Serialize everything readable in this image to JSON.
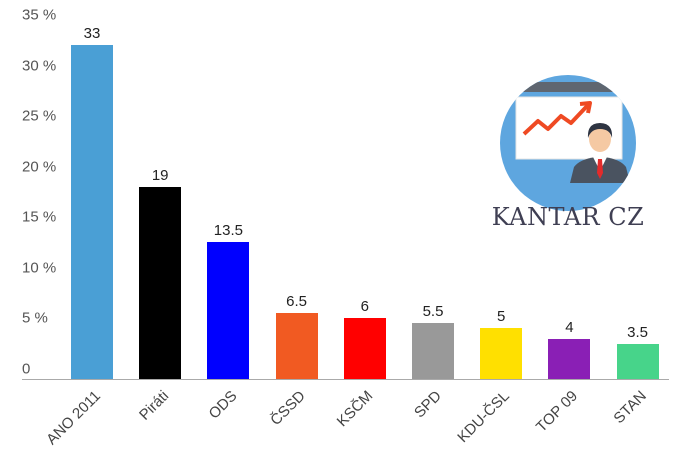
{
  "chart_data": {
    "type": "bar",
    "title": "",
    "xlabel": "",
    "ylabel": "",
    "ylim": [
      0,
      35
    ],
    "yticks": [
      "0",
      "5 %",
      "10 %",
      "15 %",
      "20 %",
      "25 %",
      "30 %",
      "35 %"
    ],
    "grid": false,
    "legend": null,
    "categories": [
      "ANO 2011",
      "Piráti",
      "ODS",
      "ČSSD",
      "KSČM",
      "SPD",
      "KDU-ČSL",
      "TOP 09",
      "STAN"
    ],
    "values": [
      33,
      19,
      13.5,
      6.5,
      6,
      5.5,
      5,
      4,
      3.5
    ],
    "value_labels": [
      "33",
      "19",
      "13.5",
      "6.5",
      "6",
      "5.5",
      "5",
      "4",
      "3.5"
    ],
    "colors": [
      "#4a9fd5",
      "#000000",
      "#0000ff",
      "#f15a22",
      "#ff0000",
      "#999999",
      "#ffe000",
      "#8a1fb5",
      "#47d48a"
    ],
    "annotations": [
      "KANTAR CZ"
    ]
  },
  "brand": {
    "name": "KANTAR CZ",
    "logo_icon": "presentation-chart-presenter-icon",
    "logo_bg": "#5ea6df"
  }
}
